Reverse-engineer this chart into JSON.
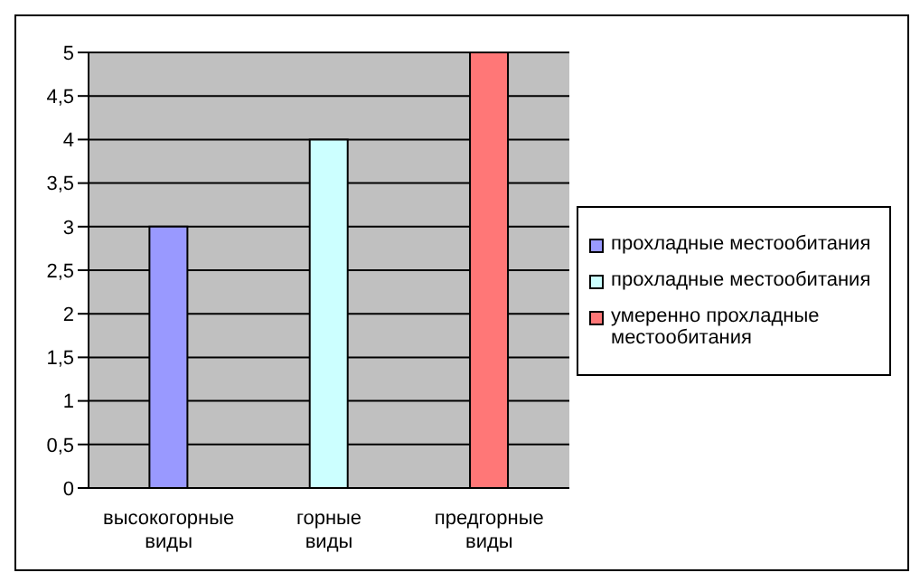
{
  "chart_data": {
    "type": "bar",
    "categories": [
      "высокогорные виды",
      "горные виды",
      "предгорные виды"
    ],
    "series": [
      {
        "name": "прохладные местообитания",
        "color": "#9999ff",
        "values": [
          3,
          null,
          null
        ]
      },
      {
        "name": "прохладные местообитания",
        "color": "#ccffff",
        "values": [
          null,
          4,
          null
        ]
      },
      {
        "name": "умеренно прохладные местообитания",
        "color": "#ff7777",
        "values": [
          null,
          null,
          5
        ]
      }
    ],
    "stacked": true,
    "ylim": [
      0,
      5
    ],
    "yticks": [
      0,
      {
        "value": 0.5,
        "label": "0,5"
      },
      1,
      {
        "value": 1.5,
        "label": "1,5"
      },
      2,
      {
        "value": 2.5,
        "label": "2,5"
      },
      3,
      {
        "value": 3.5,
        "label": "3,5"
      },
      4,
      {
        "value": 4.5,
        "label": "4,5"
      },
      5
    ],
    "grid": "y",
    "legend": "right"
  }
}
